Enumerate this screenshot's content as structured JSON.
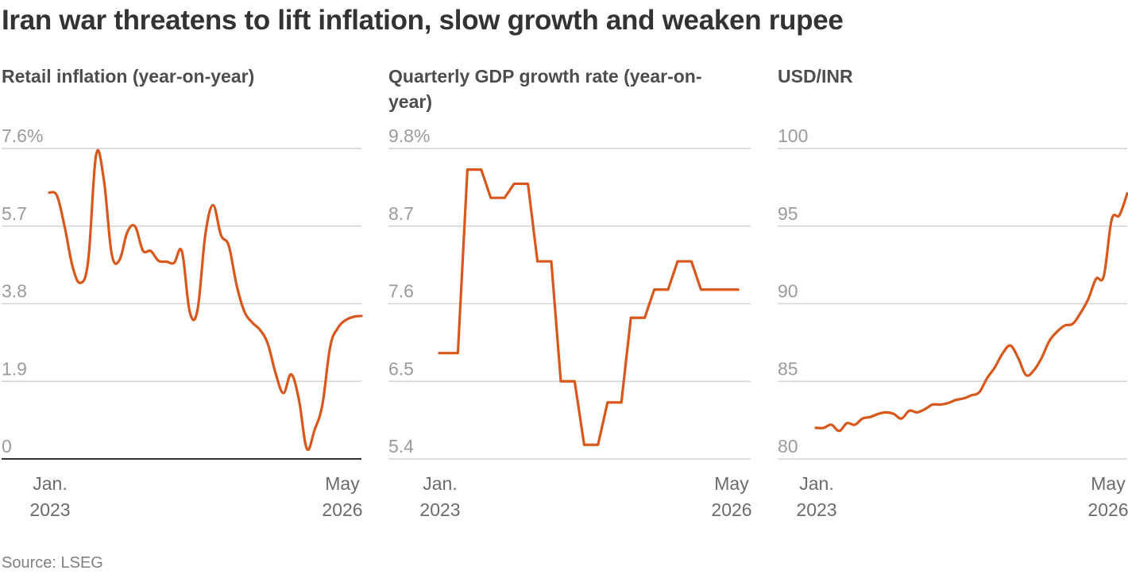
{
  "title": "Iran war threatens to lift inflation, slow growth and weaken rupee",
  "source": "Source: LSEG",
  "colors": {
    "line": "#d9571a",
    "grid": "#d4d4d4",
    "baseline": "#333333",
    "tick_text": "#9b9b9b",
    "axis_text": "#6b6b6b"
  },
  "chart_data": [
    {
      "type": "line",
      "title": "Retail inflation (year-on-year)",
      "x_range": [
        "2023-01",
        "2026-05"
      ],
      "x_labels": [
        [
          "Jan.",
          "2023"
        ],
        [
          "May",
          "2026"
        ]
      ],
      "y_ticks": [
        "7.6%",
        "5.7",
        "3.8",
        "1.9",
        "0"
      ],
      "y_tick_values": [
        7.6,
        5.7,
        3.8,
        1.9,
        0
      ],
      "ylim": [
        0,
        7.6
      ],
      "grid": true,
      "series": [
        {
          "x": [
            "2023-01",
            "2023-02",
            "2023-03",
            "2023-04",
            "2023-05",
            "2023-06",
            "2023-07",
            "2023-08",
            "2023-09",
            "2023-10",
            "2023-11",
            "2023-12",
            "2024-01",
            "2024-02",
            "2024-03",
            "2024-04",
            "2024-05",
            "2024-06",
            "2024-07",
            "2024-08",
            "2024-09",
            "2024-10",
            "2024-11",
            "2024-12",
            "2025-01",
            "2025-02",
            "2025-03",
            "2025-04",
            "2025-05",
            "2025-06",
            "2025-07",
            "2025-08",
            "2025-09",
            "2025-10",
            "2025-11",
            "2025-12",
            "2026-01",
            "2026-02",
            "2026-03",
            "2026-04",
            "2026-05"
          ],
          "values": [
            6.52,
            6.44,
            5.66,
            4.7,
            4.31,
            4.87,
            7.44,
            6.83,
            5.02,
            4.87,
            5.55,
            5.69,
            5.1,
            5.09,
            4.85,
            4.83,
            4.8,
            5.08,
            3.6,
            3.65,
            5.49,
            6.21,
            5.48,
            5.22,
            4.26,
            3.61,
            3.34,
            3.16,
            2.82,
            2.1,
            1.61,
            2.07,
            1.44,
            0.25,
            0.71,
            1.33,
            2.75,
            3.21,
            3.4,
            3.48,
            3.5
          ]
        }
      ]
    },
    {
      "type": "line",
      "title": "Quarterly GDP growth rate (year-on-year)",
      "x_range": [
        "2023-01",
        "2026-05"
      ],
      "x_labels": [
        [
          "Jan.",
          "2023"
        ],
        [
          "May",
          "2026"
        ]
      ],
      "y_ticks": [
        "9.8%",
        "8.7",
        "7.6",
        "6.5",
        "5.4"
      ],
      "y_tick_values": [
        9.8,
        8.7,
        7.6,
        6.5,
        5.4
      ],
      "ylim": [
        5.4,
        9.8
      ],
      "grid": true,
      "series": [
        {
          "x": [
            "2023-01",
            "2023-04",
            "2023-07",
            "2023-10",
            "2024-01",
            "2024-04",
            "2024-07",
            "2024-10",
            "2025-01",
            "2025-04",
            "2025-07",
            "2025-10",
            "2026-01"
          ],
          "values": [
            6.9,
            9.5,
            9.1,
            9.3,
            8.2,
            6.5,
            5.6,
            6.2,
            7.4,
            7.8,
            8.2,
            7.8,
            7.8
          ]
        }
      ]
    },
    {
      "type": "line",
      "title": "USD/INR",
      "x_range": [
        "2023-01",
        "2026-05"
      ],
      "x_labels": [
        [
          "Jan.",
          "2023"
        ],
        [
          "May",
          "2026"
        ]
      ],
      "y_ticks": [
        "100",
        "95",
        "90",
        "85",
        "80"
      ],
      "y_tick_values": [
        100,
        95,
        90,
        85,
        80
      ],
      "ylim": [
        80,
        100
      ],
      "grid": true,
      "series": [
        {
          "x": [
            "2023-01",
            "2023-02",
            "2023-03",
            "2023-04",
            "2023-05",
            "2023-06",
            "2023-07",
            "2023-08",
            "2023-09",
            "2023-10",
            "2023-11",
            "2023-12",
            "2024-01",
            "2024-02",
            "2024-03",
            "2024-04",
            "2024-05",
            "2024-06",
            "2024-07",
            "2024-08",
            "2024-09",
            "2024-10",
            "2024-11",
            "2024-12",
            "2025-01",
            "2025-02",
            "2025-03",
            "2025-04",
            "2025-05",
            "2025-06",
            "2025-07",
            "2025-08",
            "2025-09",
            "2025-10",
            "2025-11",
            "2025-12",
            "2026-01",
            "2026-02",
            "2026-03",
            "2026-04",
            "2026-05"
          ],
          "values": [
            82.0,
            82.0,
            82.2,
            81.8,
            82.3,
            82.2,
            82.6,
            82.7,
            82.9,
            83.0,
            82.9,
            82.6,
            83.1,
            83.0,
            83.2,
            83.5,
            83.5,
            83.6,
            83.8,
            83.9,
            84.1,
            84.3,
            85.2,
            85.9,
            86.8,
            87.3,
            86.5,
            85.4,
            85.7,
            86.5,
            87.6,
            88.2,
            88.6,
            88.7,
            89.4,
            90.3,
            91.6,
            91.8,
            95.4,
            95.7,
            97.1
          ]
        }
      ]
    }
  ]
}
